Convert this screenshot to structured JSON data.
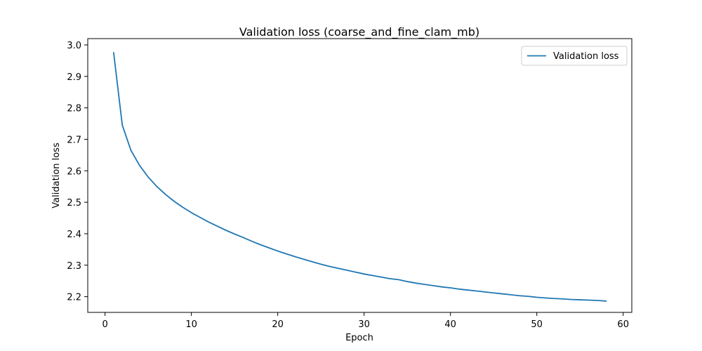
{
  "chart_data": {
    "type": "line",
    "title": "Validation loss (coarse_and_fine_clam_mb)",
    "xlabel": "Epoch",
    "ylabel": "Validation loss",
    "xlim": [
      -2,
      61
    ],
    "ylim": [
      2.15,
      3.02
    ],
    "xticks": [
      "0",
      "10",
      "20",
      "30",
      "40",
      "50",
      "60"
    ],
    "yticks": [
      "2.2",
      "2.3",
      "2.4",
      "2.5",
      "2.6",
      "2.7",
      "2.8",
      "2.9",
      "3.0"
    ],
    "xtick_values": [
      0,
      10,
      20,
      30,
      40,
      50,
      60
    ],
    "ytick_values": [
      2.2,
      2.3,
      2.4,
      2.5,
      2.6,
      2.7,
      2.8,
      2.9,
      3.0
    ],
    "grid": false,
    "legend_position": "top-right",
    "colors": {
      "series": "#1f77b4"
    },
    "series": [
      {
        "name": "Validation loss",
        "x": [
          1,
          2,
          3,
          4,
          5,
          6,
          7,
          8,
          9,
          10,
          11,
          12,
          13,
          14,
          15,
          16,
          17,
          18,
          19,
          20,
          21,
          22,
          23,
          24,
          25,
          26,
          27,
          28,
          29,
          30,
          31,
          32,
          33,
          34,
          35,
          36,
          37,
          38,
          39,
          40,
          41,
          42,
          43,
          44,
          45,
          46,
          47,
          48,
          49,
          50,
          51,
          52,
          53,
          54,
          55,
          56,
          57,
          58
        ],
        "values": [
          2.975,
          2.745,
          2.665,
          2.617,
          2.58,
          2.55,
          2.525,
          2.503,
          2.484,
          2.467,
          2.452,
          2.437,
          2.424,
          2.411,
          2.399,
          2.388,
          2.376,
          2.365,
          2.355,
          2.345,
          2.336,
          2.327,
          2.319,
          2.311,
          2.303,
          2.296,
          2.29,
          2.284,
          2.278,
          2.272,
          2.267,
          2.262,
          2.257,
          2.254,
          2.248,
          2.243,
          2.239,
          2.235,
          2.231,
          2.228,
          2.224,
          2.221,
          2.218,
          2.215,
          2.212,
          2.209,
          2.206,
          2.203,
          2.201,
          2.198,
          2.196,
          2.194,
          2.193,
          2.191,
          2.19,
          2.189,
          2.188,
          2.186
        ]
      }
    ]
  }
}
